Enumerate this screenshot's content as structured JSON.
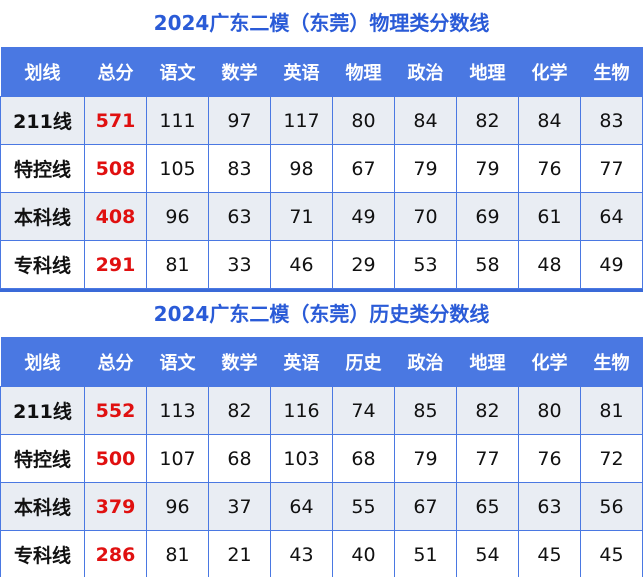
{
  "tables": [
    {
      "title": "2024广东二模（东莞）物理类分数线",
      "headers": [
        "划线",
        "总分",
        "语文",
        "数学",
        "英语",
        "物理",
        "政治",
        "地理",
        "化学",
        "生物"
      ],
      "rows": [
        [
          "211线",
          "571",
          "111",
          "97",
          "117",
          "80",
          "84",
          "82",
          "84",
          "83"
        ],
        [
          "特控线",
          "508",
          "105",
          "83",
          "98",
          "67",
          "79",
          "79",
          "76",
          "77"
        ],
        [
          "本科线",
          "408",
          "96",
          "63",
          "71",
          "49",
          "70",
          "69",
          "61",
          "64"
        ],
        [
          "专科线",
          "291",
          "81",
          "33",
          "46",
          "29",
          "53",
          "58",
          "48",
          "49"
        ]
      ]
    },
    {
      "title": "2024广东二模（东莞）历史类分数线",
      "headers": [
        "划线",
        "总分",
        "语文",
        "数学",
        "英语",
        "历史",
        "政治",
        "地理",
        "化学",
        "生物"
      ],
      "rows": [
        [
          "211线",
          "552",
          "113",
          "82",
          "116",
          "74",
          "85",
          "82",
          "80",
          "81"
        ],
        [
          "特控线",
          "500",
          "107",
          "68",
          "103",
          "68",
          "79",
          "77",
          "76",
          "72"
        ],
        [
          "本科线",
          "379",
          "96",
          "37",
          "64",
          "55",
          "67",
          "65",
          "63",
          "56"
        ],
        [
          "专科线",
          "286",
          "81",
          "21",
          "43",
          "40",
          "51",
          "54",
          "45",
          "45"
        ]
      ]
    }
  ],
  "colors": {
    "header": "#4a78e2",
    "title": "#2a5bd7",
    "total": "#e01010",
    "alt_row": "#e9edf3"
  }
}
